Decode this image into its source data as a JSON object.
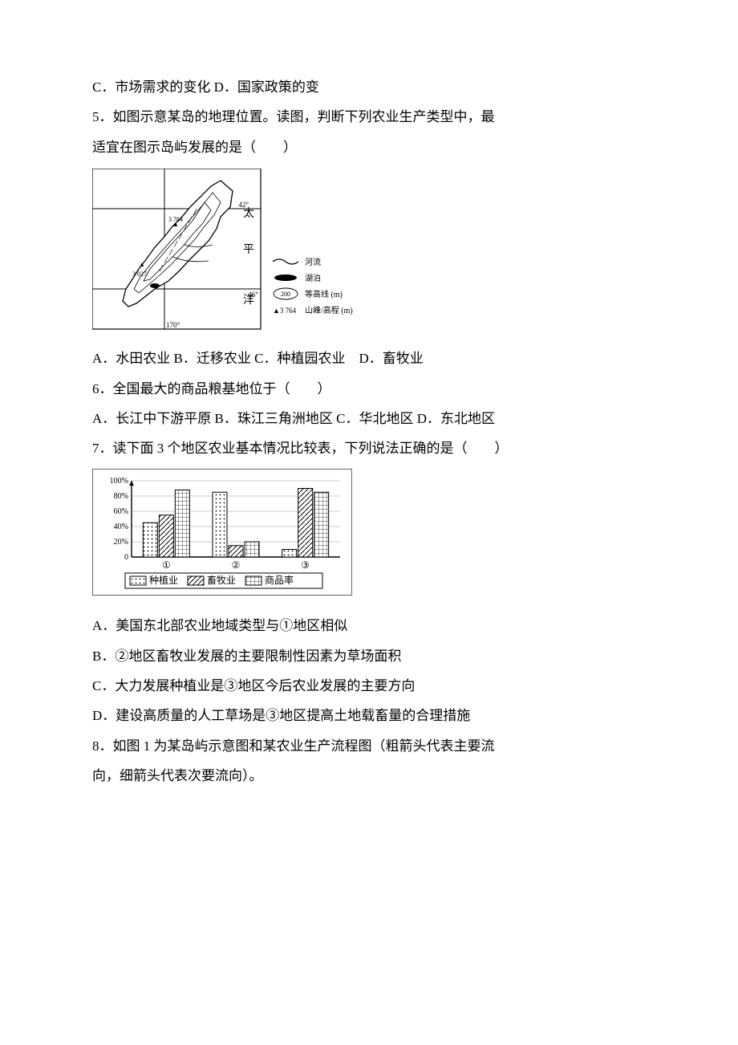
{
  "q4_tail": "C．市场需求的变化 D．国家政策的变",
  "q5": {
    "stem1": "5．如图示意某岛的地理位置。读图，判断下列农业生产类型中，最",
    "stem2": "适宜在图示岛屿发展的是（　　）",
    "options": "A．水田农业 B．迁移农业 C．种植园农业　D．畜牧业",
    "map": {
      "ocean_label_1": "太",
      "ocean_label_2": "平",
      "ocean_label_3": "洋",
      "lat1": "42°",
      "lat2": "46°",
      "lon": "170°",
      "peak1": "3 764",
      "peak2": "3 027",
      "legend_river": "河流",
      "legend_lake": "湖泊",
      "legend_contour_val": "200",
      "legend_contour": "等高线 (m)",
      "legend_peak_val": "▲3 764",
      "legend_peak": "山峰/高程 (m)"
    }
  },
  "q6": {
    "stem": "6．全国最大的商品粮基地位于（　　）",
    "options": "A．长江中下游平原 B．珠江三角洲地区 C．华北地区 D．东北地区"
  },
  "q7": {
    "stem": "7．读下面 3 个地区农业基本情况比较表，下列说法正确的是（　　）",
    "chart": {
      "yticks": [
        "0",
        "20%",
        "40%",
        "60%",
        "80%",
        "100%"
      ],
      "groups": [
        "①",
        "②",
        "③"
      ],
      "series": [
        {
          "name": "种植业",
          "pattern": "dots",
          "values": [
            45,
            85,
            10
          ]
        },
        {
          "name": "畜牧业",
          "pattern": "hatch",
          "values": [
            55,
            15,
            90
          ]
        },
        {
          "name": "商品率",
          "pattern": "grid",
          "values": [
            88,
            20,
            85
          ]
        }
      ],
      "legend_label": "种植业",
      "legend_label2": "畜牧业",
      "legend_label3": "商品率",
      "colors": {
        "axis": "#000000",
        "grid": "#999999",
        "bar_stroke": "#000000",
        "text": "#000000"
      }
    },
    "optA": "A．美国东北部农业地域类型与①地区相似",
    "optB": "B．②地区畜牧业发展的主要限制性因素为草场面积",
    "optC": "C．大力发展种植业是③地区今后农业发展的主要方向",
    "optD": "D．建设高质量的人工草场是③地区提高土地载畜量的合理措施"
  },
  "q8": {
    "stem1": "8．如图 1 为某岛屿示意图和某农业生产流程图（粗箭头代表主要流",
    "stem2": "向，细箭头代表次要流向）。"
  }
}
